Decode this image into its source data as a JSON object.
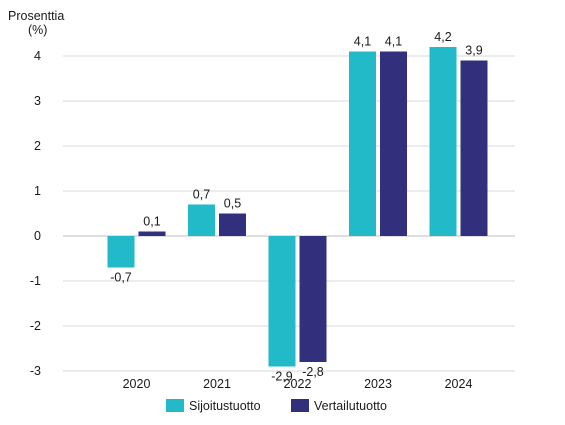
{
  "chart_data": {
    "type": "bar",
    "ylabel_line1": "Prosenttia",
    "ylabel_line2": "(%)",
    "categories": [
      "2020",
      "2021",
      "2022",
      "2023",
      "2024"
    ],
    "series": [
      {
        "name": "Sijoitustuotto",
        "color": "#22b9c8",
        "values": [
          -0.7,
          0.7,
          -2.9,
          4.1,
          4.2
        ],
        "labels": [
          "-0,7",
          "0,7",
          "-2,9",
          "4,1",
          "4,2"
        ]
      },
      {
        "name": "Vertailutuotto",
        "color": "#322f7d",
        "values": [
          0.1,
          0.5,
          -2.8,
          4.1,
          3.9
        ],
        "labels": [
          "0,1",
          "0,5",
          "-2,8",
          "4,1",
          "3,9"
        ]
      }
    ],
    "yticks": [
      4,
      3,
      2,
      1,
      0,
      -1,
      -2,
      -3
    ],
    "ytick_labels": [
      "4",
      "3",
      "2",
      "1",
      "0",
      "-1",
      "-2",
      "-3"
    ],
    "ylim": [
      -3,
      4
    ],
    "grid": true,
    "legend_position": "bottom-center"
  }
}
